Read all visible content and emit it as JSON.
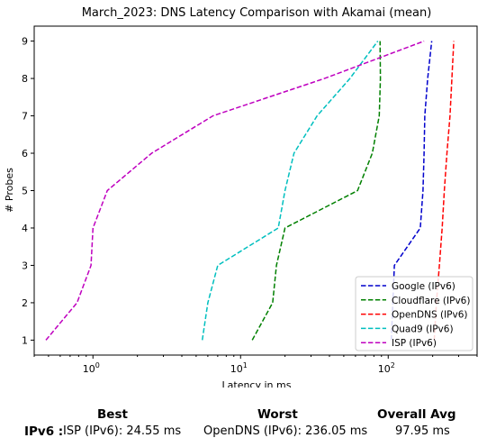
{
  "chart_data": {
    "type": "line",
    "title": "March_2023: DNS Latency Comparison with Akamai (mean)",
    "xlabel": "Latency in ms",
    "ylabel": "# Probes",
    "xscale": "log",
    "xlim": [
      0.4,
      400
    ],
    "ylim": [
      0.6,
      9.4
    ],
    "xticks": [
      {
        "value": 1,
        "label": "10^0"
      },
      {
        "value": 10,
        "label": "10^1"
      },
      {
        "value": 100,
        "label": "10^2"
      }
    ],
    "yticks": [
      1,
      2,
      3,
      4,
      5,
      6,
      7,
      8,
      9
    ],
    "grid": false,
    "legend_position": "lower-right",
    "series": [
      {
        "name": "Google (IPv6)",
        "color": "#0000cc",
        "style": "dashed",
        "x": [
          105,
          110,
          165,
          172,
          175,
          177,
          185,
          197
        ],
        "y": [
          1,
          3,
          4,
          5,
          6,
          7,
          8,
          9
        ]
      },
      {
        "name": "Cloudflare (IPv6)",
        "color": "#008000",
        "style": "dashed",
        "x": [
          12,
          16.5,
          17.5,
          20,
          62,
          78,
          87,
          88.5,
          88
        ],
        "y": [
          1,
          2,
          3,
          4,
          5,
          6,
          7,
          8,
          9
        ]
      },
      {
        "name": "OpenDNS (IPv6)",
        "color": "#ff0000",
        "style": "dashed",
        "x": [
          205,
          212,
          222,
          232,
          240,
          250,
          262,
          270,
          278
        ],
        "y": [
          1,
          2,
          3,
          4,
          5,
          6,
          7,
          8,
          9
        ]
      },
      {
        "name": "Quad9 (IPv6)",
        "color": "#00bfbf",
        "style": "dashed",
        "x": [
          5.5,
          6,
          7,
          18,
          20,
          23,
          33,
          55,
          85
        ],
        "y": [
          1,
          2,
          3,
          4,
          5,
          6,
          7,
          8,
          9
        ]
      },
      {
        "name": "ISP (IPv6)",
        "color": "#bf00bf",
        "style": "dashed",
        "x": [
          0.48,
          0.78,
          0.97,
          1.0,
          1.25,
          2.5,
          6.5,
          37,
          175
        ],
        "y": [
          1,
          2,
          3,
          4,
          5,
          6,
          7,
          8,
          9
        ]
      }
    ]
  },
  "summary": {
    "best_header": "Best",
    "worst_header": "Worst",
    "avg_header": "Overall Avg",
    "row_label": "IPv6 :",
    "best_value": "ISP (IPv6): 24.55 ms",
    "worst_value": "OpenDNS (IPv6): 236.05 ms",
    "avg_value": "97.95 ms"
  }
}
